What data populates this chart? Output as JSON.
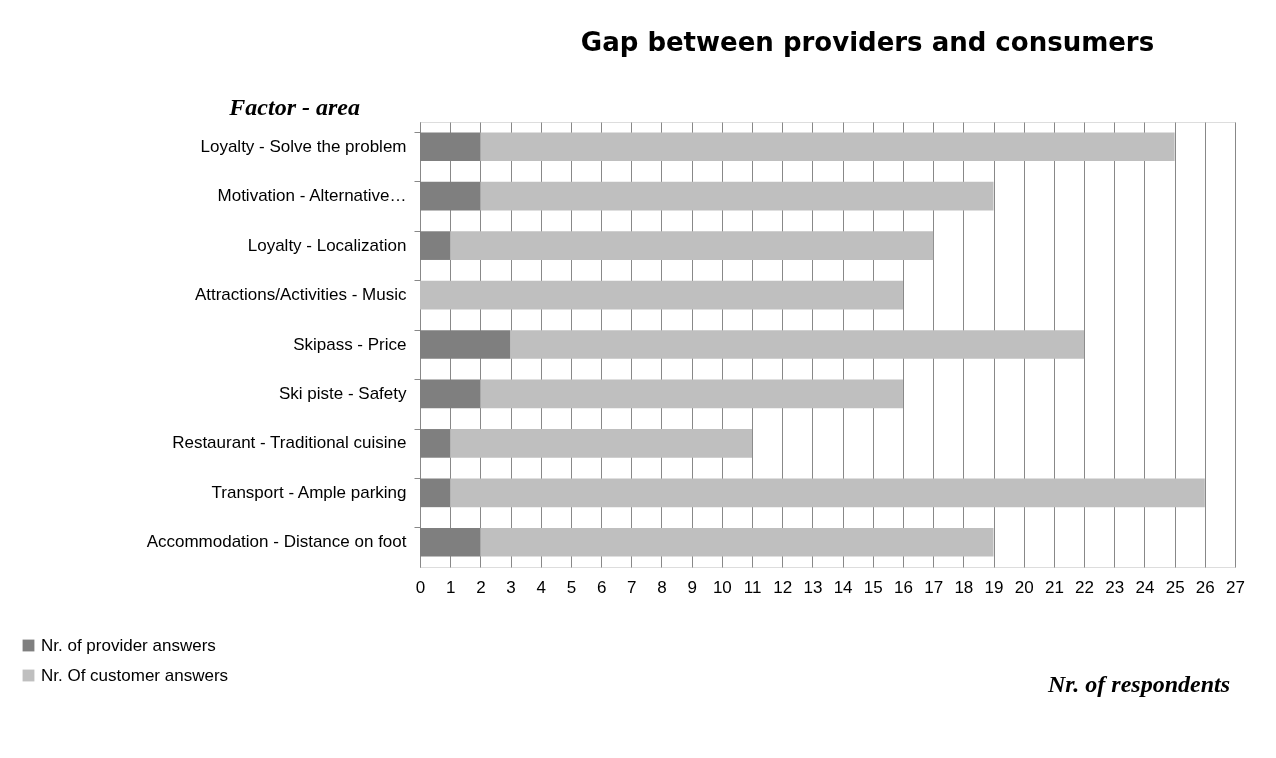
{
  "chart_data": {
    "type": "bar",
    "orientation": "horizontal",
    "stacked": true,
    "title": "Gap between providers and consumers",
    "ylabel": "Factor - area",
    "xlabel": "Nr. of respondents",
    "categories": [
      "Loyalty - Solve the problem",
      "Motivation - Alternative…",
      "Loyalty - Localization",
      "Attractions/Activities - Music",
      "Skipass - Price",
      "Ski piste - Safety",
      "Restaurant - Traditional cuisine",
      "Transport - Ample parking",
      "Accommodation - Distance on foot"
    ],
    "series": [
      {
        "name": "Nr. of provider answers",
        "color": "#7f7f7f",
        "values": [
          2,
          2,
          1,
          0,
          3,
          2,
          1,
          1,
          2
        ]
      },
      {
        "name": "Nr. Of customer answers",
        "color": "#bfbfbf",
        "values": [
          23,
          17,
          16,
          16,
          19,
          14,
          10,
          25,
          17
        ]
      }
    ],
    "xlim": [
      0,
      27
    ],
    "xticks": [
      0,
      1,
      2,
      3,
      4,
      5,
      6,
      7,
      8,
      9,
      10,
      11,
      12,
      13,
      14,
      15,
      16,
      17,
      18,
      19,
      20,
      21,
      22,
      23,
      24,
      25,
      26,
      27
    ],
    "grid": "x",
    "legend": "bottom left"
  }
}
